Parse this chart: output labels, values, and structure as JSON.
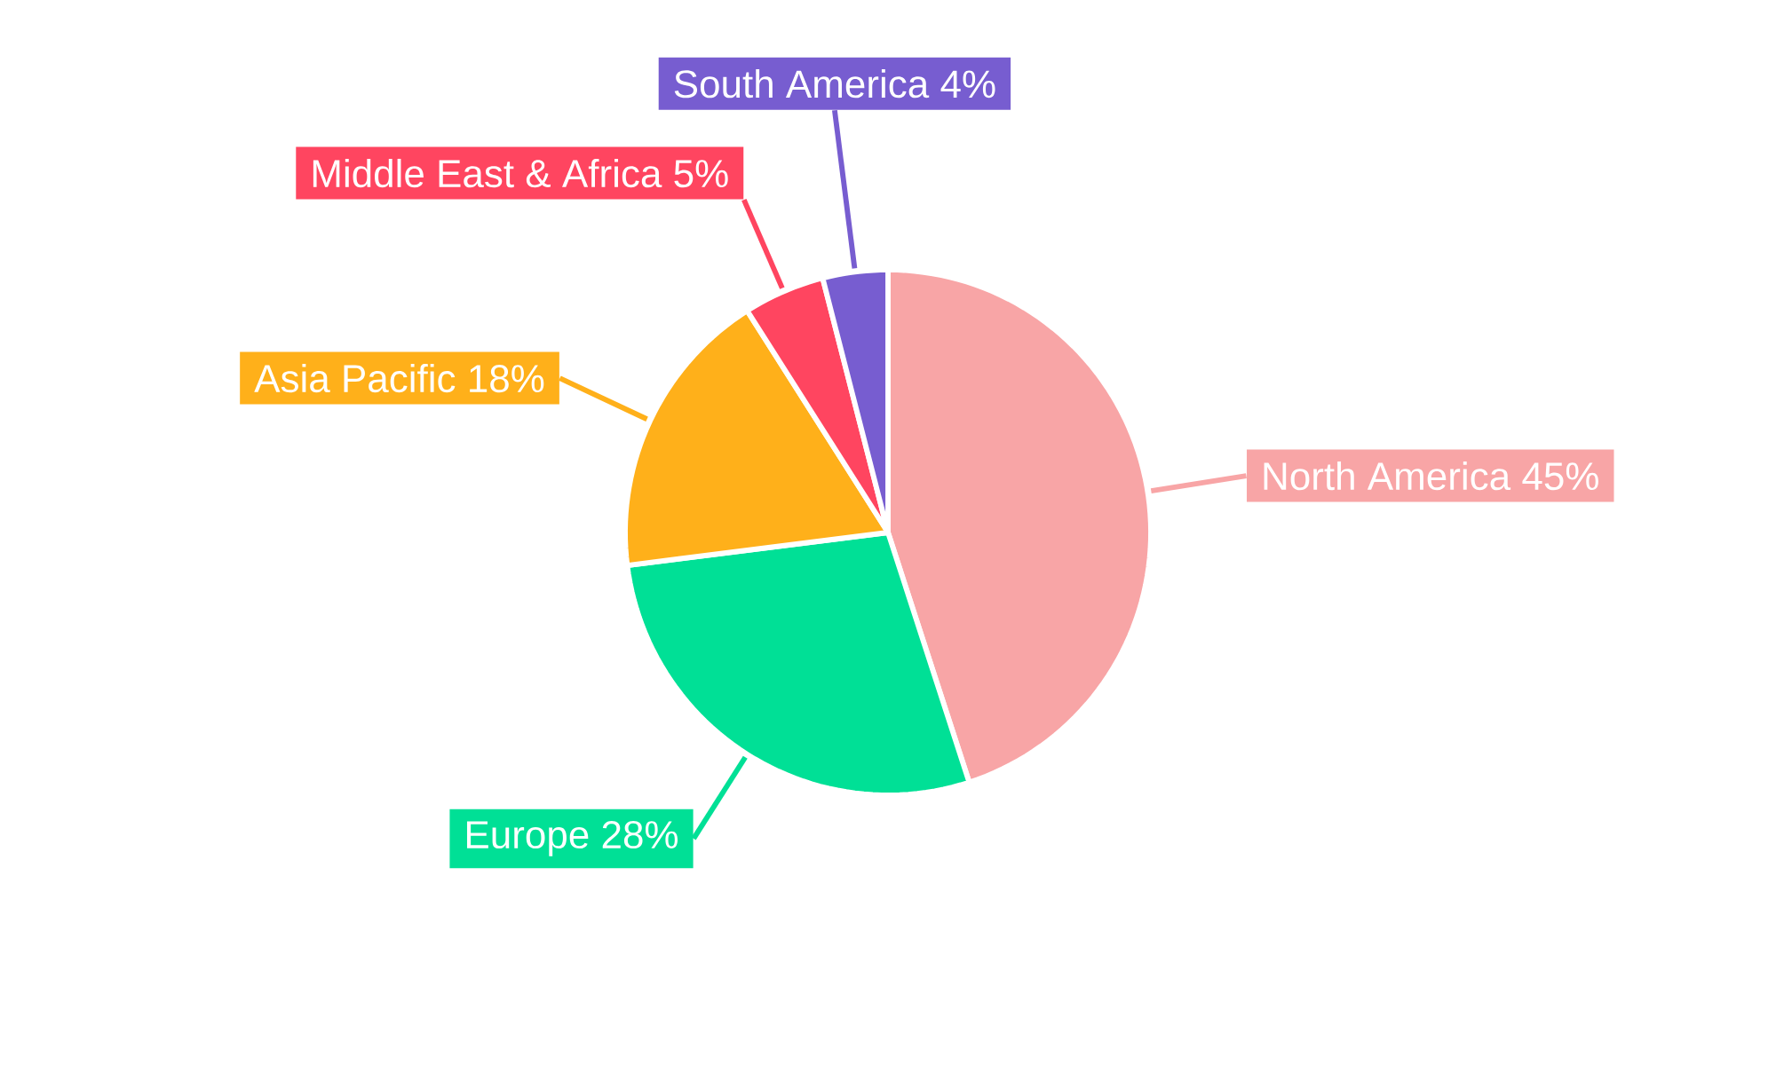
{
  "chart_data": {
    "type": "pie",
    "categories": [
      "North America",
      "Europe",
      "Asia Pacific",
      "Middle East & Africa",
      "South America"
    ],
    "values": [
      45,
      28,
      18,
      5,
      4
    ],
    "colors": [
      "#f8a5a6",
      "#00e096",
      "#ffb01a",
      "#ff4560",
      "#775dd0"
    ],
    "value_labels": [
      "45%",
      "28%",
      "18%",
      "5%",
      "4%"
    ]
  }
}
